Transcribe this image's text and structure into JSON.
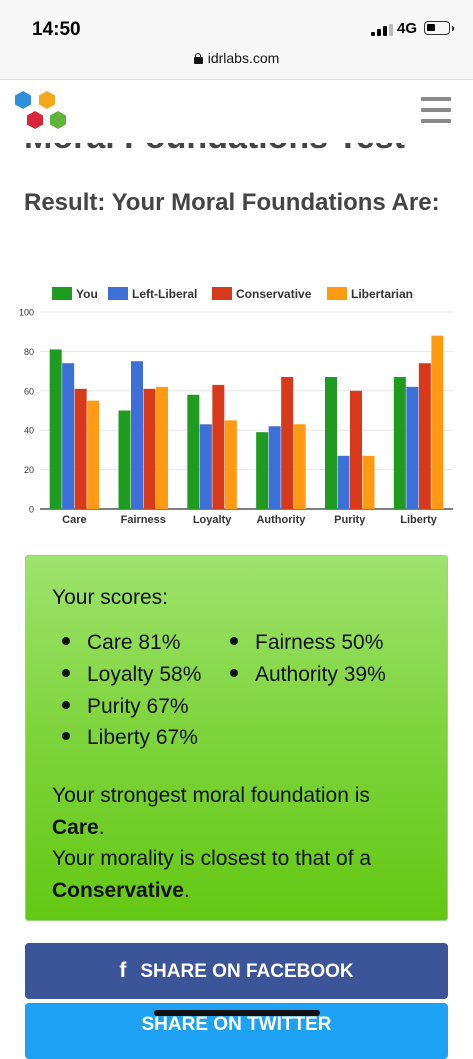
{
  "status_bar": {
    "time": "14:50",
    "network": "4G"
  },
  "browser": {
    "url": "idrlabs.com"
  },
  "header": {
    "logo": "idrlabs-hexagon-logo",
    "menu_icon": "hamburger-icon",
    "clipped_title": "Moral Foundations Test"
  },
  "result_heading": "Result: Your Moral Foundations Are:",
  "chart_data": {
    "type": "bar",
    "categories": [
      "Care",
      "Fairness",
      "Loyalty",
      "Authority",
      "Purity",
      "Liberty"
    ],
    "series": [
      {
        "name": "You",
        "color": "#1f9b1f",
        "values": [
          81,
          50,
          58,
          39,
          67,
          67
        ]
      },
      {
        "name": "Left-Liberal",
        "color": "#3c6fd8",
        "values": [
          74,
          75,
          43,
          42,
          27,
          62
        ]
      },
      {
        "name": "Conservative",
        "color": "#d8391a",
        "values": [
          61,
          61,
          63,
          67,
          60,
          74
        ]
      },
      {
        "name": "Libertarian",
        "color": "#ff9a12",
        "values": [
          55,
          62,
          45,
          43,
          27,
          88
        ]
      }
    ],
    "ylim": [
      0,
      100
    ],
    "yticks": [
      "0",
      "20",
      "40",
      "60",
      "80",
      "100"
    ],
    "grid": true,
    "legend": "top"
  },
  "scores": {
    "label": "Your scores:",
    "items": [
      "Care 81%",
      "Fairness 50%",
      "Loyalty 58%",
      "Authority 39%",
      "Purity 67%",
      "Liberty 67%"
    ],
    "strongest_prefix": "Your strongest moral foundation is",
    "strongest_value": "Care",
    "closest_prefix": "Your morality is closest to that of a",
    "closest_value": "Conservative"
  },
  "share": {
    "facebook_label": "SHARE ON FACEBOOK",
    "twitter_label": "SHARE ON TWITTER"
  },
  "colors": {
    "score_box_top": "#9ee36d",
    "score_box_bottom": "#63c813",
    "facebook": "#3b5598",
    "twitter": "#1da1f2"
  }
}
